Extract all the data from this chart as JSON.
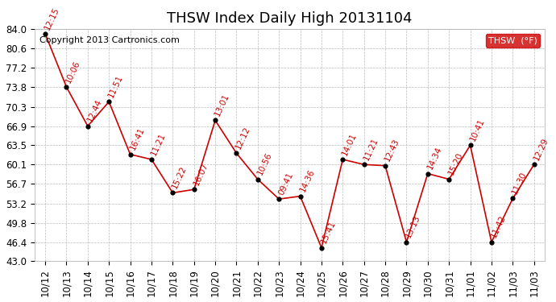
{
  "title": "THSW Index Daily High 20131104",
  "copyright": "Copyright 2013 Cartronics.com",
  "legend_label": "THSW  (°F)",
  "x_labels": [
    "10/12",
    "10/13",
    "10/14",
    "10/15",
    "10/16",
    "10/17",
    "10/18",
    "10/19",
    "10/20",
    "10/21",
    "10/22",
    "10/23",
    "10/24",
    "10/25",
    "10/26",
    "10/27",
    "10/28",
    "10/29",
    "10/30",
    "10/31",
    "11/01",
    "11/02",
    "11/03",
    "11/03"
  ],
  "y_values": [
    83.2,
    73.8,
    66.9,
    71.2,
    61.9,
    61.0,
    55.1,
    55.7,
    67.9,
    62.1,
    57.5,
    54.0,
    54.5,
    45.4,
    61.0,
    60.1,
    59.9,
    46.4,
    58.5,
    57.5,
    63.5,
    46.4,
    54.1,
    60.1
  ],
  "time_labels": [
    "12:15",
    "10:06",
    "12:44",
    "11:51",
    "16:41",
    "11:21",
    "15:22",
    "16:07",
    "13:01",
    "12:12",
    "10:56",
    "09:41",
    "14:36",
    "15:41",
    "14:01",
    "11:21",
    "12:43",
    "13:13",
    "14:34",
    "15:20",
    "10:41",
    "11:42",
    "11:30",
    "12:29"
  ],
  "y_ticks": [
    43.0,
    46.4,
    49.8,
    53.2,
    56.7,
    60.1,
    63.5,
    66.9,
    70.3,
    73.8,
    77.2,
    80.6,
    84.0
  ],
  "line_color": "#cc0000",
  "marker_color": "#000000",
  "bg_color": "#ffffff",
  "grid_color": "#bbbbbb",
  "legend_bg": "#cc0000",
  "legend_text": "#ffffff",
  "title_fontsize": 13,
  "tick_fontsize": 8.5,
  "annotation_fontsize": 7.5,
  "copyright_fontsize": 8
}
